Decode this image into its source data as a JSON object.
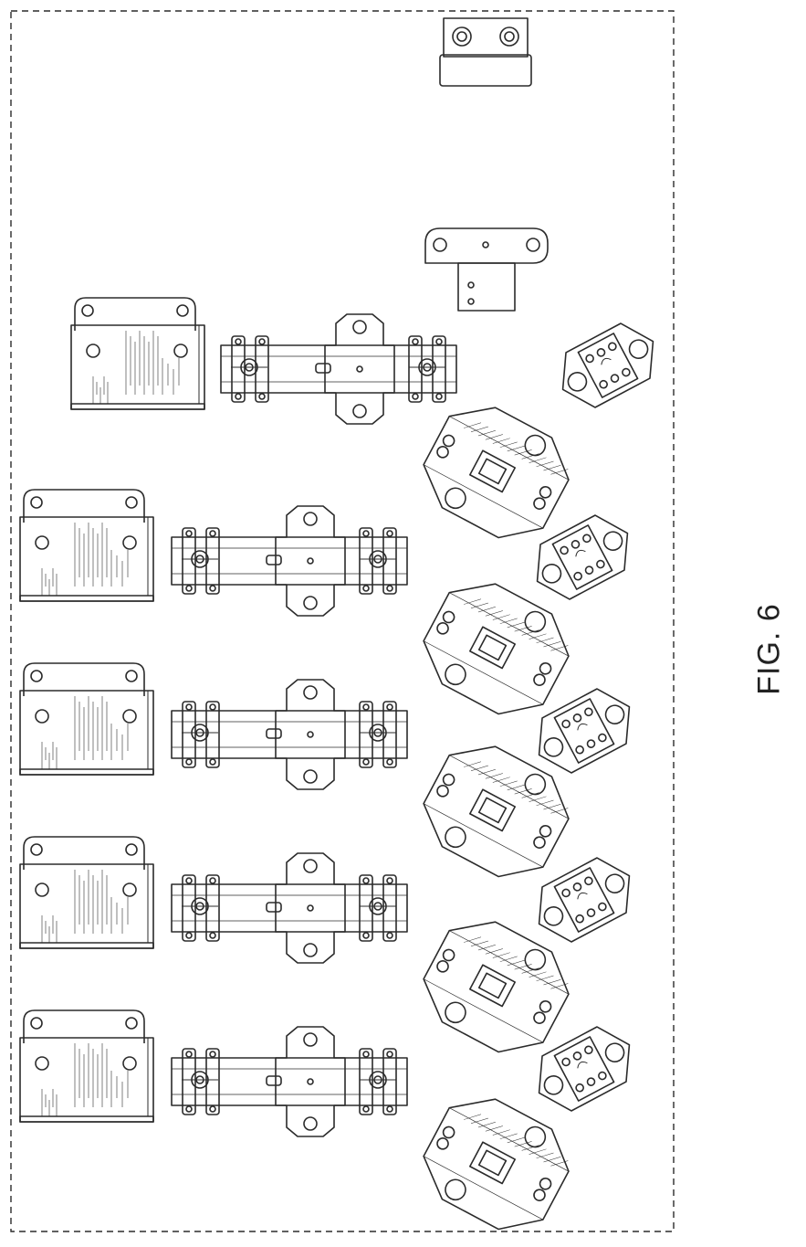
{
  "figure": {
    "label": "FIG. 6"
  },
  "style": {
    "stroke": "#2b2b2b",
    "background": "#ffffff"
  },
  "rows": [
    {
      "id": "row-1",
      "bracket": true,
      "rail": true,
      "clamp": true,
      "spine_clip": true
    },
    {
      "id": "row-2",
      "bracket": true,
      "rail": true,
      "clamp": true,
      "spine_clip": true
    },
    {
      "id": "row-3",
      "bracket": true,
      "rail": true,
      "clamp": true,
      "spine_clip": true
    },
    {
      "id": "row-4",
      "bracket": true,
      "rail": true,
      "clamp": true,
      "spine_clip": true
    },
    {
      "id": "row-5",
      "bracket": true,
      "rail": false,
      "clamp": true,
      "spine_clip": false
    }
  ]
}
